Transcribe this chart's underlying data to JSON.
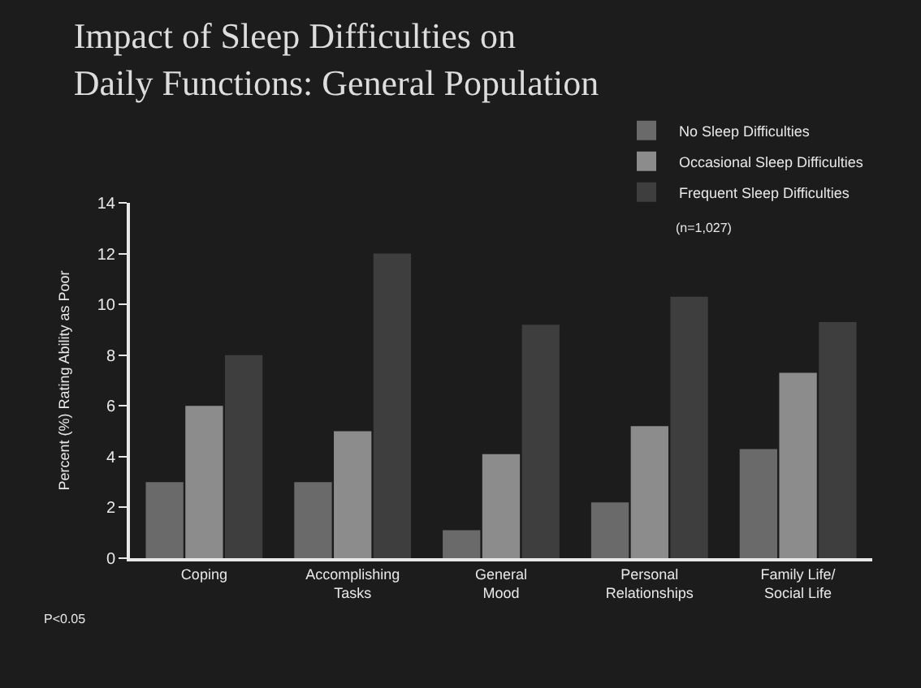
{
  "chart_data": {
    "type": "bar",
    "title": "Impact of Sleep Difficulties on\nDaily Functions: General Population",
    "ylabel": "Percent (%) Rating Ability as Poor",
    "categories": [
      "Coping",
      "Accomplishing\nTasks",
      "General\nMood",
      "Personal\nRelationships",
      "Family Life/\nSocial Life"
    ],
    "series": [
      {
        "name": "No Sleep Difficulties",
        "color": "#6a6a6a",
        "values": [
          3,
          3,
          1.1,
          2.2,
          4.3
        ]
      },
      {
        "name": "Occasional Sleep Difficulties",
        "color": "#8c8c8c",
        "values": [
          6,
          5,
          4.1,
          5.2,
          7.3
        ]
      },
      {
        "name": "Frequent Sleep Difficulties",
        "color": "#3e3e3e",
        "values": [
          8,
          12,
          9.2,
          10.3,
          9.3
        ]
      }
    ],
    "ylim": [
      0,
      14
    ],
    "yticks": [
      0,
      2,
      4,
      6,
      8,
      10,
      12,
      14
    ],
    "grid": false,
    "legend": "top right",
    "annotations": [
      "(n=1,027)",
      "P<0.05"
    ]
  }
}
